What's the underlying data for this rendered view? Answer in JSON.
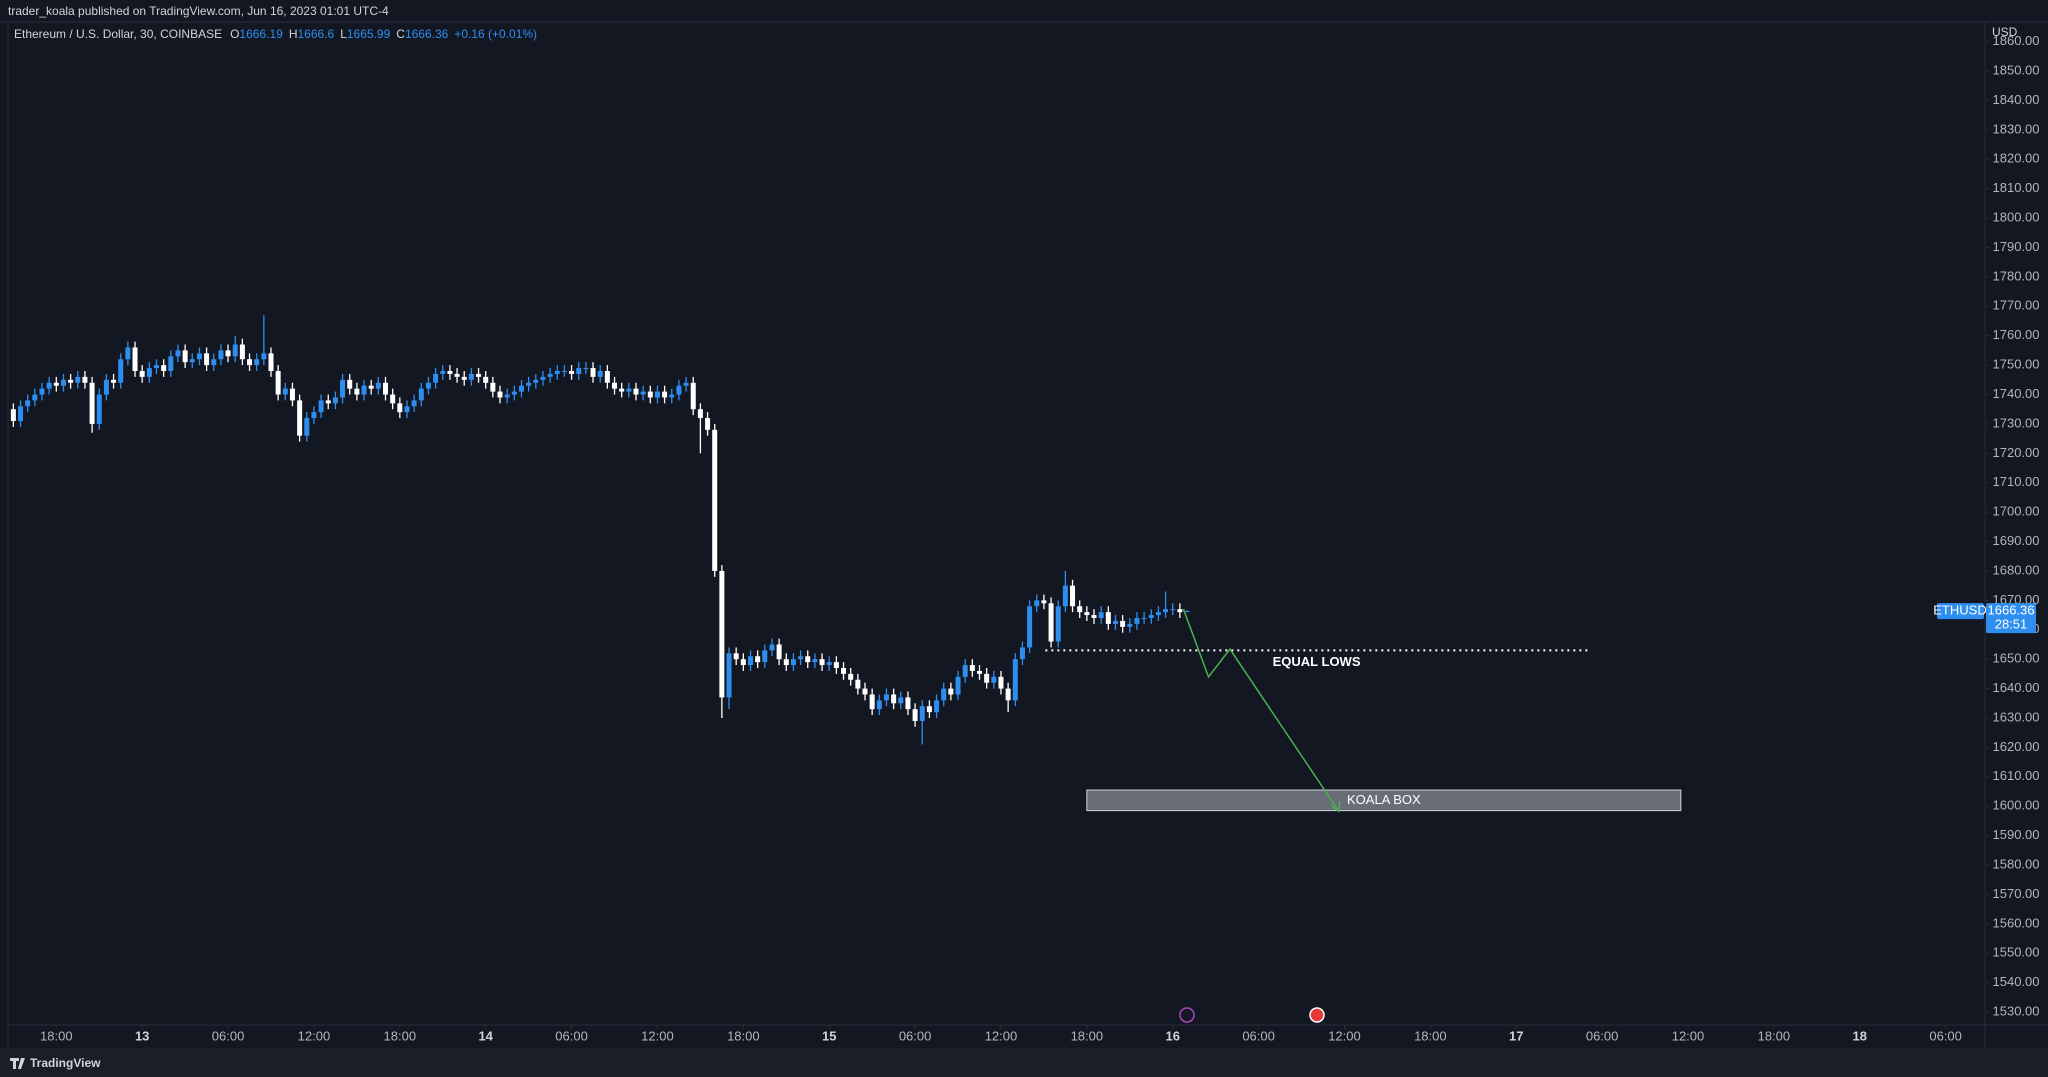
{
  "header": {
    "text": "trader_koala published on TradingView.com, Jun 16, 2023 01:01 UTC-4"
  },
  "footer": {
    "brand": "TradingView"
  },
  "chart_data": {
    "type": "candlestick",
    "symbol_title": "Ethereum / U.S. Dollar, 30, COINBASE",
    "ohlc_legend": [
      {
        "label": "O",
        "value": 1666.19
      },
      {
        "label": "H",
        "value": 1666.6
      },
      {
        "label": "L",
        "value": 1665.99
      },
      {
        "label": "C",
        "value": 1666.36
      }
    ],
    "change": "+0.16 (+0.01%)",
    "axis_unit": "USD",
    "last_price": {
      "symbol": "ETHUSD",
      "value": 1666.36,
      "countdown": "28:51"
    },
    "up_color": "#2e8ef0",
    "down_color": "#ffffff",
    "grid": false,
    "categories": [
      null,
      null,
      null,
      null,
      null,
      null,
      null,
      null,
      null,
      null,
      null,
      null,
      null,
      null,
      null,
      null,
      null,
      null,
      null,
      null,
      null,
      null,
      null,
      null,
      null,
      null,
      null,
      null,
      null,
      null,
      null,
      null,
      null,
      null,
      null,
      null,
      null,
      null,
      null,
      null,
      null,
      null,
      null,
      null,
      null,
      null,
      null,
      null,
      null,
      null,
      null,
      null,
      null,
      null,
      null,
      null,
      null,
      null,
      null,
      null,
      null,
      null,
      null,
      null,
      null,
      null,
      null,
      null,
      null,
      null,
      null,
      null,
      null,
      null,
      null,
      null,
      null,
      null,
      null,
      null,
      null,
      null,
      null,
      null,
      null,
      null,
      null,
      null,
      null,
      null,
      null,
      null,
      null,
      null,
      null,
      null,
      null,
      null,
      null,
      null,
      null,
      null,
      null,
      null,
      null,
      null,
      null,
      null,
      null,
      null,
      null,
      null,
      null,
      null,
      null,
      null,
      null,
      null,
      null,
      null,
      null,
      null,
      null,
      null,
      null,
      null,
      null,
      null,
      null,
      null,
      null,
      null,
      null,
      null,
      null,
      null,
      null,
      null,
      null,
      null,
      null,
      null,
      null,
      null,
      null,
      null,
      null,
      null,
      null,
      null,
      null,
      null,
      null,
      null,
      null,
      null,
      null,
      null,
      null,
      null,
      null,
      null,
      null,
      null,
      null
    ],
    "open": [
      1735,
      1731,
      1736,
      1738,
      1740,
      1742,
      1744,
      1743,
      1745,
      1744,
      1746,
      1744,
      1730,
      1740,
      1745,
      1744,
      1752,
      1756,
      1748,
      1746,
      1749,
      1750,
      1748,
      1753,
      1755,
      1751,
      1752,
      1754,
      1750,
      1752,
      1755,
      1753,
      1757,
      1752,
      1750,
      1752,
      1754,
      1748,
      1740,
      1742,
      1738,
      1726,
      1732,
      1734,
      1738,
      1737,
      1739,
      1745,
      1742,
      1740,
      1743,
      1742,
      1744,
      1740,
      1737,
      1734,
      1736,
      1738,
      1742,
      1744,
      1747,
      1748,
      1747,
      1746,
      1745,
      1747,
      1746,
      1744,
      1741,
      1739,
      1740,
      1741,
      1743,
      1744,
      1745,
      1746,
      1747,
      1748,
      1748,
      1747,
      1749,
      1749,
      1746,
      1748,
      1744,
      1742,
      1741,
      1742,
      1740,
      1741,
      1739,
      1741,
      1739,
      1740,
      1743,
      1744,
      1735,
      1732,
      1728,
      1680,
      1637,
      1652,
      1650,
      1648,
      1651,
      1649,
      1653,
      1655,
      1650,
      1648,
      1650,
      1651,
      1649,
      1650,
      1648,
      1649,
      1647,
      1645,
      1643,
      1640,
      1638,
      1633,
      1636,
      1638,
      1635,
      1637,
      1633,
      1629,
      1634,
      1632,
      1636,
      1640,
      1638,
      1644,
      1648,
      1646,
      1645,
      1642,
      1644,
      1640,
      1636,
      1650,
      1654,
      1668,
      1670,
      1669,
      1656,
      1668,
      1675,
      1668,
      1666,
      1665,
      1664,
      1666,
      1662,
      1663,
      1661,
      1662,
      1664,
      1664,
      1665,
      1666,
      1667,
      1667,
      1666.19
    ],
    "high": [
      1737,
      1738,
      1740,
      1742,
      1744,
      1746,
      1746,
      1747,
      1747,
      1748,
      1748,
      1746,
      1742,
      1747,
      1747,
      1754,
      1758,
      1758,
      1750,
      1751,
      1752,
      1752,
      1755,
      1757,
      1757,
      1754,
      1756,
      1756,
      1754,
      1757,
      1757,
      1760,
      1759,
      1754,
      1754,
      1767,
      1756,
      1750,
      1744,
      1744,
      1740,
      1734,
      1736,
      1740,
      1740,
      1741,
      1747,
      1747,
      1744,
      1745,
      1745,
      1746,
      1746,
      1742,
      1739,
      1738,
      1740,
      1744,
      1746,
      1749,
      1750,
      1750,
      1749,
      1748,
      1749,
      1749,
      1748,
      1746,
      1743,
      1742,
      1743,
      1745,
      1746,
      1747,
      1748,
      1749,
      1750,
      1750,
      1750,
      1751,
      1751,
      1751,
      1750,
      1750,
      1746,
      1744,
      1744,
      1744,
      1743,
      1743,
      1743,
      1743,
      1742,
      1745,
      1746,
      1746,
      1737,
      1734,
      1730,
      1682,
      1654,
      1654,
      1652,
      1653,
      1653,
      1655,
      1657,
      1657,
      1652,
      1652,
      1653,
      1653,
      1652,
      1652,
      1651,
      1651,
      1649,
      1647,
      1645,
      1642,
      1640,
      1638,
      1640,
      1640,
      1639,
      1639,
      1635,
      1636,
      1636,
      1638,
      1642,
      1642,
      1646,
      1650,
      1650,
      1648,
      1647,
      1646,
      1646,
      1642,
      1652,
      1656,
      1670,
      1672,
      1672,
      1671,
      1670,
      1680,
      1677,
      1670,
      1668,
      1667,
      1668,
      1668,
      1665,
      1665,
      1664,
      1666,
      1666,
      1667,
      1668,
      1673,
      1669,
      1669,
      1666.6
    ],
    "low": [
      1729,
      1729,
      1734,
      1736,
      1738,
      1740,
      1741,
      1741,
      1742,
      1742,
      1742,
      1727,
      1728,
      1738,
      1742,
      1742,
      1750,
      1746,
      1744,
      1744,
      1747,
      1746,
      1746,
      1751,
      1749,
      1749,
      1750,
      1748,
      1748,
      1750,
      1751,
      1751,
      1750,
      1748,
      1748,
      1750,
      1746,
      1738,
      1738,
      1736,
      1724,
      1724,
      1730,
      1732,
      1735,
      1735,
      1737,
      1740,
      1738,
      1738,
      1740,
      1740,
      1738,
      1735,
      1732,
      1732,
      1734,
      1736,
      1740,
      1742,
      1745,
      1745,
      1744,
      1743,
      1743,
      1744,
      1742,
      1739,
      1737,
      1737,
      1738,
      1739,
      1741,
      1742,
      1743,
      1744,
      1745,
      1746,
      1745,
      1745,
      1747,
      1744,
      1744,
      1742,
      1740,
      1739,
      1739,
      1738,
      1738,
      1737,
      1737,
      1737,
      1737,
      1738,
      1741,
      1733,
      1720,
      1726,
      1678,
      1630,
      1633,
      1648,
      1646,
      1646,
      1647,
      1647,
      1651,
      1648,
      1646,
      1646,
      1648,
      1647,
      1647,
      1646,
      1646,
      1645,
      1643,
      1641,
      1638,
      1636,
      1631,
      1631,
      1634,
      1633,
      1633,
      1631,
      1627,
      1621,
      1630,
      1630,
      1634,
      1636,
      1636,
      1642,
      1644,
      1643,
      1640,
      1640,
      1638,
      1632,
      1634,
      1648,
      1652,
      1666,
      1667,
      1654,
      1654,
      1666,
      1666,
      1664,
      1663,
      1662,
      1662,
      1660,
      1660,
      1659,
      1659,
      1660,
      1662,
      1662,
      1663,
      1664,
      1665,
      1664,
      1665.99
    ],
    "close": [
      1731,
      1736,
      1738,
      1740,
      1742,
      1744,
      1743,
      1745,
      1744,
      1746,
      1744,
      1730,
      1740,
      1745,
      1744,
      1752,
      1756,
      1748,
      1746,
      1749,
      1750,
      1748,
      1753,
      1755,
      1751,
      1752,
      1754,
      1750,
      1752,
      1755,
      1753,
      1757,
      1752,
      1750,
      1752,
      1754,
      1748,
      1740,
      1742,
      1738,
      1726,
      1732,
      1734,
      1738,
      1737,
      1739,
      1745,
      1742,
      1740,
      1743,
      1742,
      1744,
      1740,
      1737,
      1734,
      1736,
      1738,
      1742,
      1744,
      1747,
      1748,
      1747,
      1746,
      1745,
      1747,
      1746,
      1744,
      1741,
      1739,
      1740,
      1741,
      1743,
      1744,
      1745,
      1746,
      1747,
      1748,
      1748,
      1747,
      1749,
      1749,
      1746,
      1748,
      1744,
      1742,
      1741,
      1742,
      1740,
      1741,
      1739,
      1741,
      1739,
      1740,
      1743,
      1744,
      1735,
      1732,
      1728,
      1680,
      1637,
      1652,
      1650,
      1648,
      1651,
      1649,
      1653,
      1655,
      1650,
      1648,
      1650,
      1651,
      1649,
      1650,
      1648,
      1649,
      1647,
      1645,
      1643,
      1640,
      1638,
      1633,
      1636,
      1638,
      1635,
      1637,
      1633,
      1629,
      1634,
      1632,
      1636,
      1640,
      1638,
      1644,
      1648,
      1646,
      1645,
      1642,
      1644,
      1640,
      1636,
      1650,
      1654,
      1668,
      1670,
      1669,
      1656,
      1668,
      1675,
      1668,
      1666,
      1665,
      1664,
      1666,
      1662,
      1663,
      1661,
      1662,
      1664,
      1664,
      1665,
      1666,
      1667,
      1667,
      1666,
      1666.36
    ],
    "xlim": [
      -0.75,
      275.5
    ],
    "xticks": [
      {
        "value": 6,
        "label": "18:00"
      },
      {
        "value": 18,
        "label": "13"
      },
      {
        "value": 30,
        "label": "06:00"
      },
      {
        "value": 42,
        "label": "12:00"
      },
      {
        "value": 54,
        "label": "18:00"
      },
      {
        "value": 66,
        "label": "14"
      },
      {
        "value": 78,
        "label": "06:00"
      },
      {
        "value": 90,
        "label": "12:00"
      },
      {
        "value": 102,
        "label": "18:00"
      },
      {
        "value": 114,
        "label": "15"
      },
      {
        "value": 126,
        "label": "06:00"
      },
      {
        "value": 138,
        "label": "12:00"
      },
      {
        "value": 150,
        "label": "18:00"
      },
      {
        "value": 162,
        "label": "16"
      },
      {
        "value": 174,
        "label": "06:00"
      },
      {
        "value": 186,
        "label": "12:00"
      },
      {
        "value": 198,
        "label": "18:00"
      },
      {
        "value": 210,
        "label": "17"
      },
      {
        "value": 222,
        "label": "06:00"
      },
      {
        "value": 234,
        "label": "12:00"
      },
      {
        "value": 246,
        "label": "18:00"
      },
      {
        "value": 258,
        "label": "18"
      },
      {
        "value": 270,
        "label": "06:00"
      }
    ],
    "ylim": [
      1525.6,
      1866
    ],
    "yticks": [
      {
        "value": 1530,
        "label": "1530.00"
      },
      {
        "value": 1540,
        "label": "1540.00"
      },
      {
        "value": 1550,
        "label": "1550.00"
      },
      {
        "value": 1560,
        "label": "1560.00"
      },
      {
        "value": 1570,
        "label": "1570.00"
      },
      {
        "value": 1580,
        "label": "1580.00"
      },
      {
        "value": 1590,
        "label": "1590.00"
      },
      {
        "value": 1600,
        "label": "1600.00"
      },
      {
        "value": 1610,
        "label": "1610.00"
      },
      {
        "value": 1620,
        "label": "1620.00"
      },
      {
        "value": 1630,
        "label": "1630.00"
      },
      {
        "value": 1640,
        "label": "1640.00"
      },
      {
        "value": 1650,
        "label": "1650.00"
      },
      {
        "value": 1660,
        "label": "1660.00"
      },
      {
        "value": 1670,
        "label": "1670.00"
      },
      {
        "value": 1680,
        "label": "1680.00"
      },
      {
        "value": 1690,
        "label": "1690.00"
      },
      {
        "value": 1700,
        "label": "1700.00"
      },
      {
        "value": 1710,
        "label": "1710.00"
      },
      {
        "value": 1720,
        "label": "1720.00"
      },
      {
        "value": 1730,
        "label": "1730.00"
      },
      {
        "value": 1740,
        "label": "1740.00"
      },
      {
        "value": 1750,
        "label": "1750.00"
      },
      {
        "value": 1760,
        "label": "1760.00"
      },
      {
        "value": 1770,
        "label": "1770.00"
      },
      {
        "value": 1780,
        "label": "1780.00"
      },
      {
        "value": 1790,
        "label": "1790.00"
      },
      {
        "value": 1800,
        "label": "1800.00"
      },
      {
        "value": 1810,
        "label": "1810.00"
      },
      {
        "value": 1820,
        "label": "1820.00"
      },
      {
        "value": 1830,
        "label": "1830.00"
      },
      {
        "value": 1840,
        "label": "1840.00"
      },
      {
        "value": 1850,
        "label": "1850.00"
      },
      {
        "value": 1860,
        "label": "1860.00"
      }
    ],
    "equal_lows": {
      "text": "EQUAL LOWS",
      "price": 1653,
      "x": [
        144.2,
        220
      ]
    },
    "koala_box": {
      "text": "KOALA BOX",
      "price": [
        1598.5,
        1605.5
      ],
      "x": [
        150,
        233
      ]
    },
    "projection": {
      "color": "#4caf50",
      "x": [
        163.5,
        167,
        170,
        185.2
      ],
      "y": [
        1667,
        1644,
        1653.4,
        1598.3
      ]
    }
  }
}
